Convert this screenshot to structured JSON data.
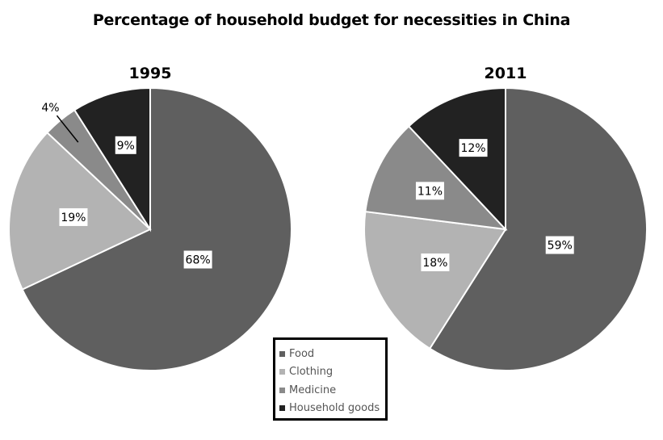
{
  "chart_data": [
    {
      "type": "pie",
      "title": "1995",
      "categories": [
        "Food",
        "Clothing",
        "Medicine",
        "Household goods"
      ],
      "values": [
        68,
        19,
        4,
        9
      ],
      "labels": [
        "68%",
        "19%",
        "4%",
        "9%"
      ],
      "start": "12 o'clock",
      "direction": "clockwise"
    },
    {
      "type": "pie",
      "title": "2011",
      "categories": [
        "Food",
        "Clothing",
        "Medicine",
        "Household goods"
      ],
      "values": [
        59,
        18,
        11,
        12
      ],
      "labels": [
        "59%",
        "18%",
        "11%",
        "12%"
      ],
      "start": "12 o'clock",
      "direction": "clockwise"
    }
  ],
  "title": "Percentage of household budget for necessities in China",
  "legend": {
    "placement": "bottom-center",
    "items": [
      {
        "label": "Food",
        "color": "#5f5f5f"
      },
      {
        "label": "Clothing",
        "color": "#b3b3b3"
      },
      {
        "label": "Medicine",
        "color": "#8a8a8a"
      },
      {
        "label": "Household goods",
        "color": "#222222"
      }
    ]
  },
  "colors": {
    "Food": "#5f5f5f",
    "Clothing": "#b3b3b3",
    "Medicine": "#8a8a8a",
    "Household goods": "#222222",
    "slice_border": "#ffffff"
  }
}
